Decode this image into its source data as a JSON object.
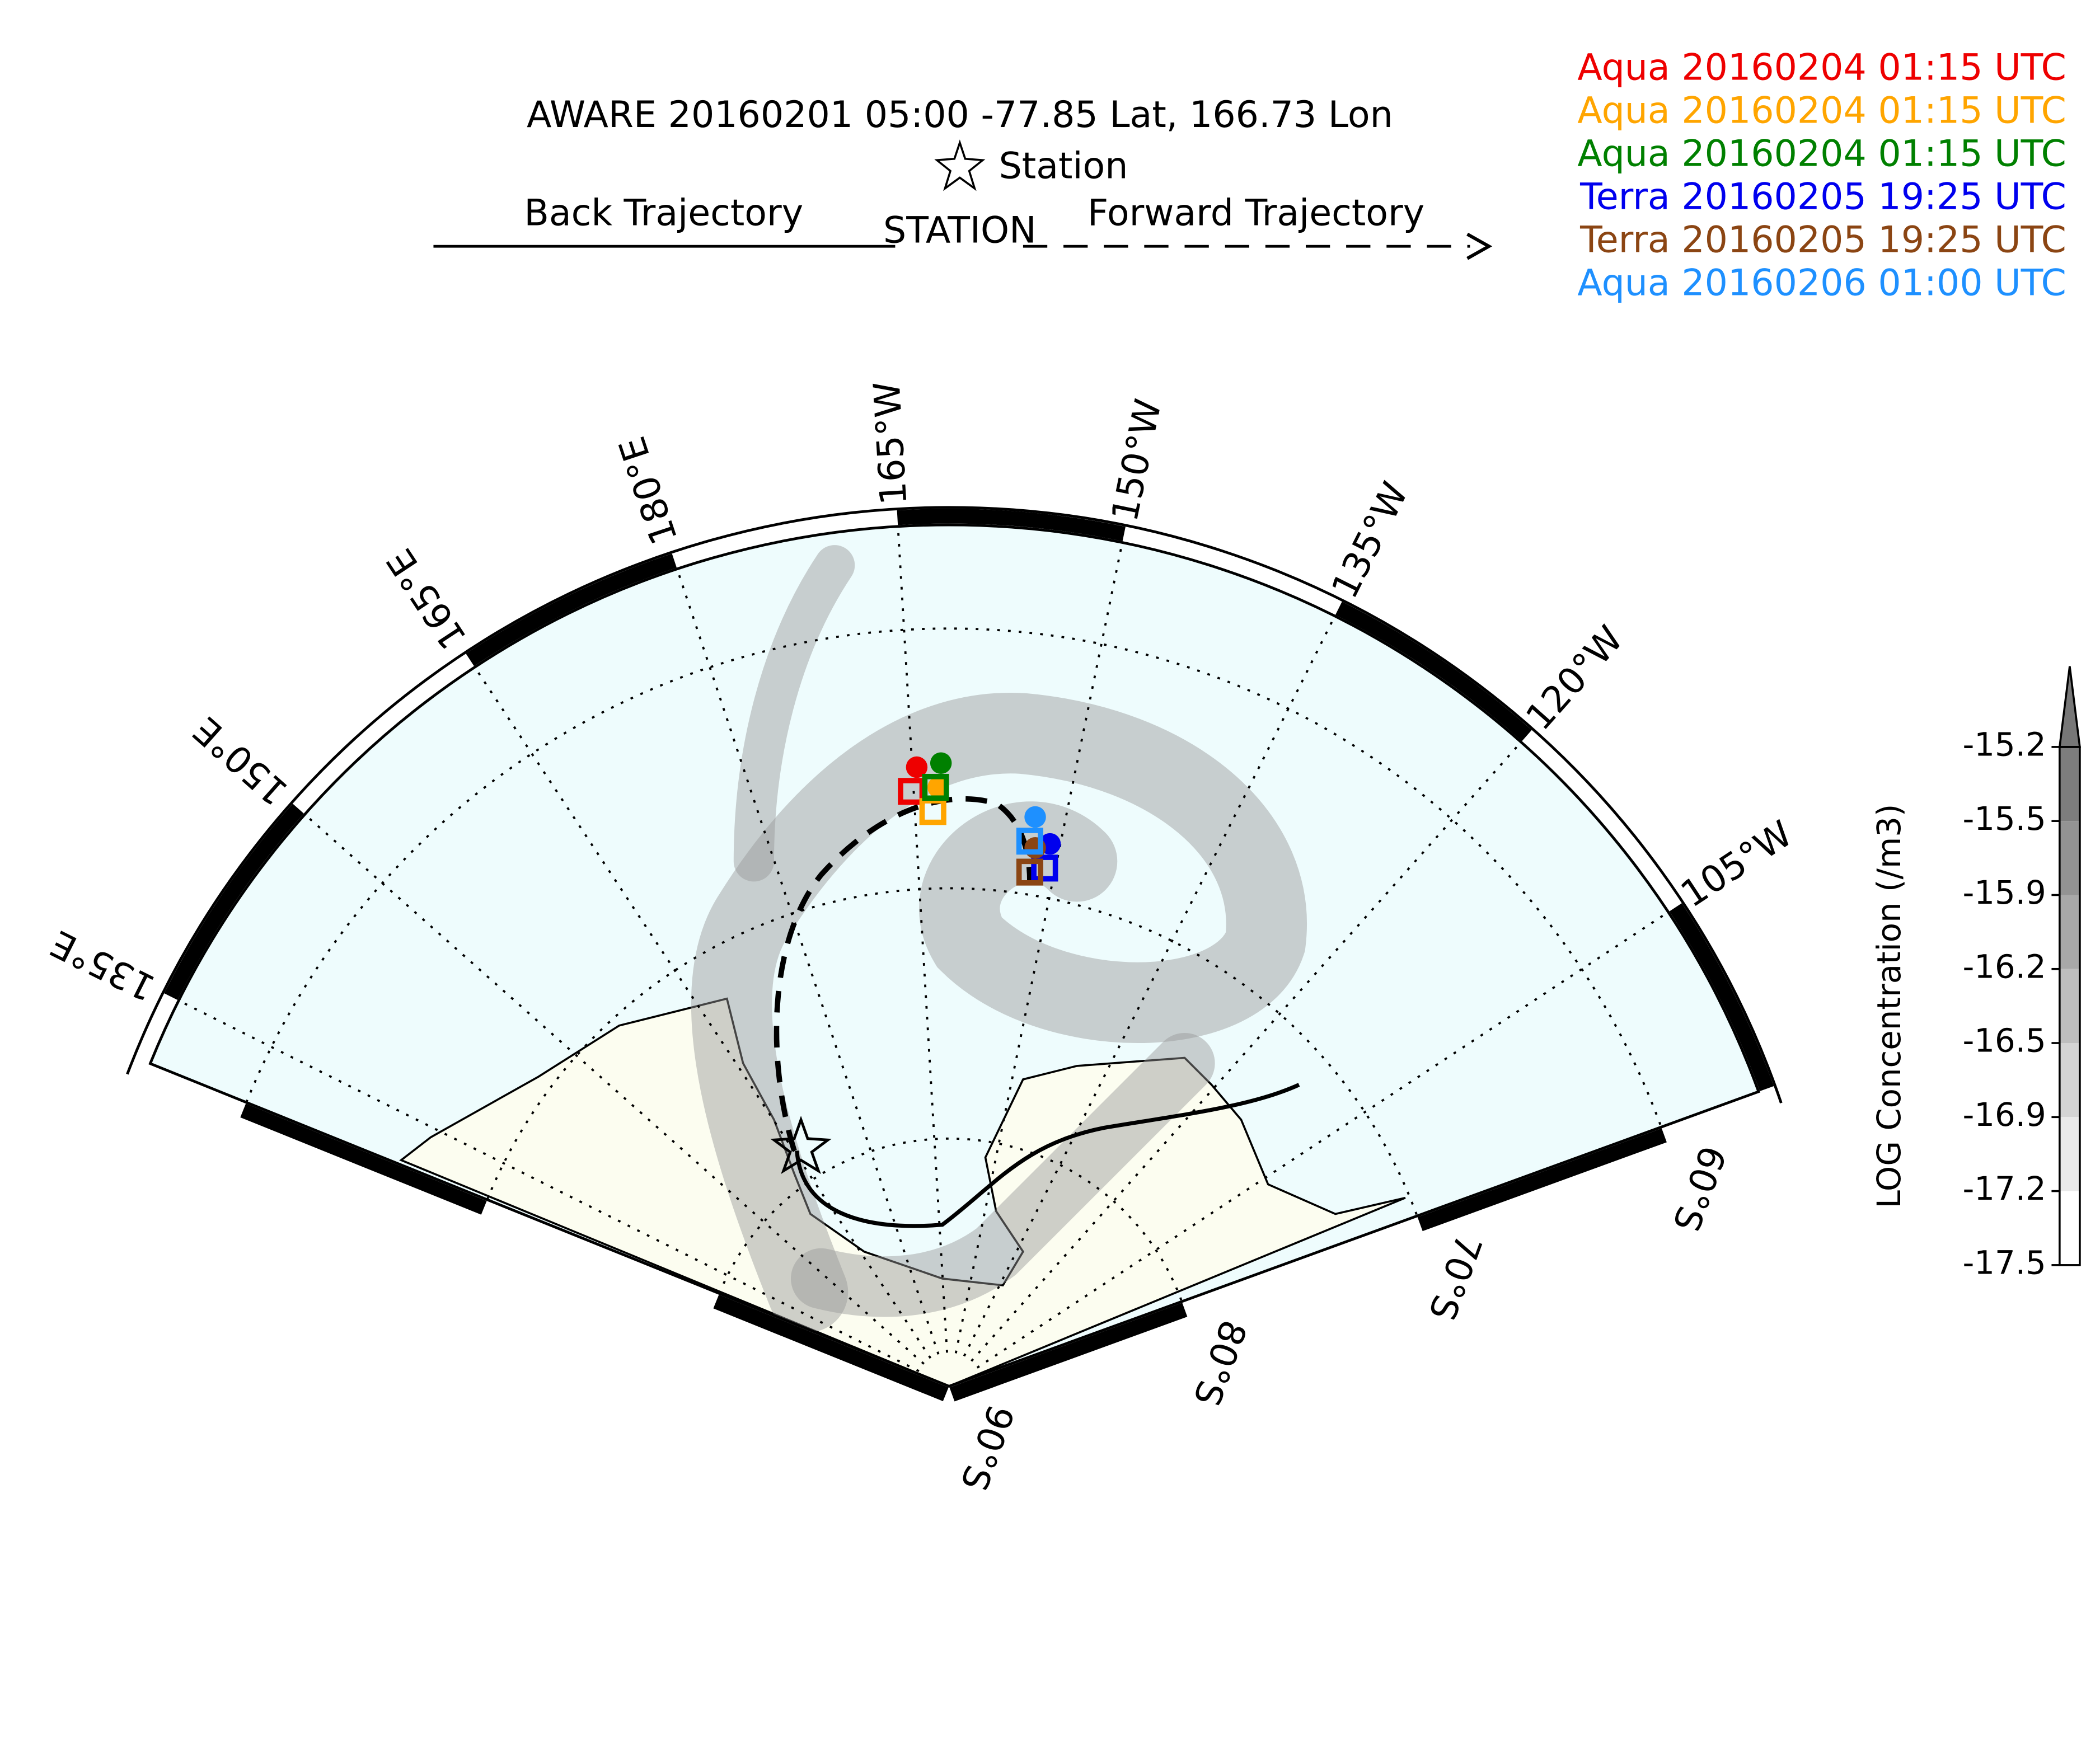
{
  "header": {
    "title": "AWARE 20160201 05:00  -77.85 Lat,  166.73 Lon",
    "station_symbol_label": "Station",
    "back_label": "Back Trajectory",
    "station_label": "STATION",
    "forward_label": "Forward Trajectory"
  },
  "overpasses": [
    {
      "label": "Aqua 20160204 01:15 UTC",
      "color": "#ee0000"
    },
    {
      "label": "Aqua 20160204 01:15 UTC",
      "color": "#ffa500"
    },
    {
      "label": "Aqua 20160204 01:15 UTC",
      "color": "#008000"
    },
    {
      "label": "Terra 20160205 19:25 UTC",
      "color": "#0000ee"
    },
    {
      "label": "Terra 20160205 19:25 UTC",
      "color": "#8b4513"
    },
    {
      "label": "Aqua 20160206 01:00 UTC",
      "color": "#1e90ff"
    }
  ],
  "map": {
    "longitude_labels": [
      "135°E",
      "150°E",
      "165°E",
      "180°E",
      "165°W",
      "150°W",
      "135°W",
      "120°W",
      "105°W"
    ],
    "latitude_labels": [
      "60°S",
      "70°S",
      "80°S",
      "90°S"
    ]
  },
  "colorbar": {
    "label": "LOG Concentration (/m3)",
    "ticks": [
      -15.2,
      -15.5,
      -15.9,
      -16.2,
      -16.5,
      -16.9,
      -17.2,
      -17.5
    ]
  }
}
